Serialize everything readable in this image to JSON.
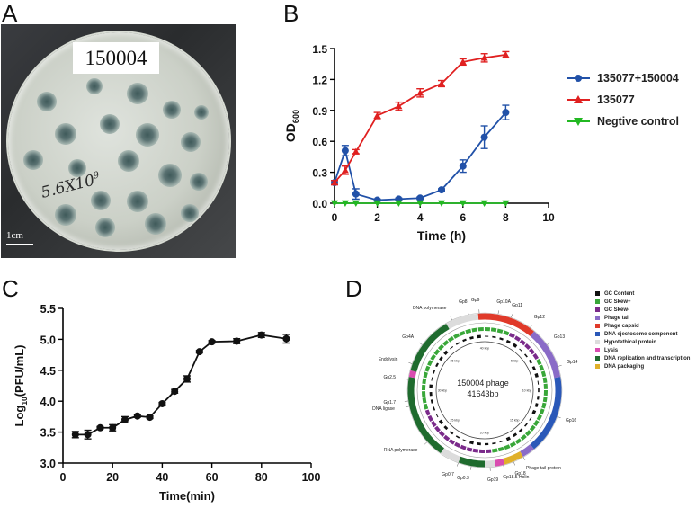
{
  "panels": {
    "a": "A",
    "b": "B",
    "c": "C",
    "d": "D"
  },
  "photo": {
    "label": "150004",
    "handwriting": "5.6X10",
    "superscript": "9",
    "scale_bar": "1cm"
  },
  "chart_data": [
    {
      "type": "line",
      "panel": "B",
      "xlabel": "Time (h)",
      "ylabel": "OD",
      "ylabel_sub": "600",
      "xlim": [
        0,
        10
      ],
      "ylim": [
        0.0,
        1.5
      ],
      "xticks": [
        "0",
        "2",
        "4",
        "6",
        "8",
        "10"
      ],
      "yticks": [
        "0.0",
        "0.3",
        "0.6",
        "0.9",
        "1.2",
        "1.5"
      ],
      "legend_position": "right",
      "series": [
        {
          "name": "135077+150004",
          "color": "#2151a8",
          "marker": "circle",
          "x": [
            0,
            0.5,
            1,
            2,
            3,
            4,
            5,
            6,
            7,
            8
          ],
          "y": [
            0.2,
            0.51,
            0.09,
            0.03,
            0.04,
            0.05,
            0.13,
            0.36,
            0.64,
            0.88
          ],
          "err": [
            0.02,
            0.05,
            0.05,
            0.01,
            0.01,
            0.01,
            0.01,
            0.06,
            0.11,
            0.07
          ]
        },
        {
          "name": "135077",
          "color": "#e02020",
          "marker": "triangle-up",
          "x": [
            0,
            0.5,
            1,
            2,
            3,
            4,
            5,
            6,
            7,
            8
          ],
          "y": [
            0.2,
            0.32,
            0.5,
            0.85,
            0.94,
            1.07,
            1.16,
            1.37,
            1.41,
            1.44
          ],
          "err": [
            0.02,
            0.04,
            0.02,
            0.03,
            0.04,
            0.04,
            0.03,
            0.03,
            0.04,
            0.03
          ]
        },
        {
          "name": "Negtive control",
          "color": "#22b822",
          "marker": "triangle-down",
          "x": [
            0,
            0.5,
            1,
            2,
            3,
            4,
            5,
            6,
            7,
            8
          ],
          "y": [
            0.0,
            0.0,
            0.0,
            0.0,
            0.0,
            0.0,
            0.0,
            0.0,
            0.0,
            0.0
          ],
          "err": [
            0,
            0,
            0,
            0,
            0,
            0,
            0,
            0,
            0,
            0
          ]
        }
      ]
    },
    {
      "type": "line",
      "panel": "C",
      "xlabel": "Time(min)",
      "ylabel": "Log",
      "ylabel_sub": "10",
      "ylabel_rest": "(PFU/mL)",
      "xlim": [
        0,
        100
      ],
      "ylim": [
        3.0,
        5.5
      ],
      "xticks": [
        "0",
        "20",
        "40",
        "60",
        "80",
        "100"
      ],
      "yticks": [
        "3.0",
        "3.5",
        "4.0",
        "4.5",
        "5.0",
        "5.5"
      ],
      "series": [
        {
          "color": "#111111",
          "marker": "circle",
          "x": [
            5,
            10,
            15,
            20,
            25,
            30,
            35,
            40,
            45,
            50,
            55,
            60,
            70,
            80,
            90
          ],
          "y": [
            3.46,
            3.46,
            3.57,
            3.57,
            3.7,
            3.76,
            3.74,
            3.96,
            4.16,
            4.36,
            4.8,
            4.96,
            4.97,
            5.07,
            5.01
          ],
          "err": [
            0.05,
            0.07,
            0.02,
            0.05,
            0.05,
            0.02,
            0.02,
            0.02,
            0.03,
            0.05,
            0.02,
            0.02,
            0.04,
            0.04,
            0.07
          ]
        }
      ]
    }
  ],
  "genome": {
    "center_title": "150004 phage",
    "center_length": "41643bp",
    "kbp_labels": [
      "40 kbp",
      "5 kbp",
      "10 kbp",
      "15 kbp",
      "20 kbp",
      "25 kbp",
      "30 kbp",
      "35 kbp"
    ],
    "legend": [
      {
        "label": "GC Content",
        "color": "#111111"
      },
      {
        "label": "GC Skew+",
        "color": "#39a739"
      },
      {
        "label": "GC Skew-",
        "color": "#7a2a8a"
      },
      {
        "label": "Phage tail",
        "color": "#8a6bc7"
      },
      {
        "label": "Phage capsid",
        "color": "#e03a2a"
      },
      {
        "label": "DNA ejectosome component",
        "color": "#2a58b8"
      },
      {
        "label": "Hypotethical protein",
        "color": "#dcdcdc"
      },
      {
        "label": "Lysis",
        "color": "#d94cb0"
      },
      {
        "label": "DNA replication and transcription",
        "color": "#1f6b2e"
      },
      {
        "label": "DNA packaging",
        "color": "#e0b02a"
      }
    ],
    "gene_labels": [
      "Gp8",
      "Gp9",
      "Gp10A",
      "Gp11",
      "Gp12",
      "Gp13",
      "Gp14",
      "Gp16",
      "Phage tail protein",
      "Gp18",
      "Gp18.5 Holin",
      "Gp19",
      "Gp0.3",
      "Gp0.7",
      "RNA polymerase",
      "DNA ligase",
      "Gp1.7",
      "Gp2.5",
      "Endolysin",
      "Gp4A",
      "DNA polymerase"
    ]
  }
}
